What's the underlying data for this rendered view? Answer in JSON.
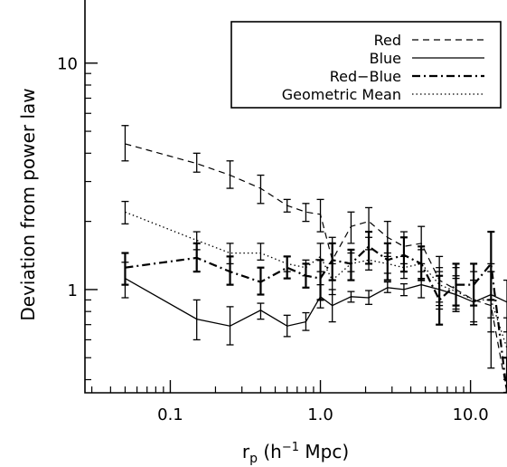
{
  "chart_data": {
    "type": "line",
    "title": "",
    "xlabel": "r_p (h^-1 Mpc)",
    "xlabel_parts": {
      "r": "r",
      "sub": "p",
      "open": " (h",
      "sup": "−1",
      "rest": " Mpc)"
    },
    "ylabel": "Deviation from power law",
    "xscale": "log",
    "yscale": "log",
    "xlim": [
      0.027,
      17.5
    ],
    "ylim": [
      0.35,
      19.0
    ],
    "xticks": [
      {
        "value": 0.1,
        "label": "0.1"
      },
      {
        "value": 1.0,
        "label": "1.0"
      },
      {
        "value": 10.0,
        "label": "10.0"
      }
    ],
    "yticks": [
      {
        "value": 1,
        "label": "1"
      },
      {
        "value": 10,
        "label": "10"
      }
    ],
    "legend_position": "top-right",
    "series": [
      {
        "name": "Red",
        "style": "dashed",
        "points": [
          {
            "x": 0.05,
            "y": 4.4,
            "lo": 3.7,
            "hi": 5.3
          },
          {
            "x": 0.15,
            "y": 3.6,
            "lo": 3.3,
            "hi": 4.0
          },
          {
            "x": 0.25,
            "y": 3.2,
            "lo": 2.8,
            "hi": 3.7
          },
          {
            "x": 0.4,
            "y": 2.8,
            "lo": 2.4,
            "hi": 3.2
          },
          {
            "x": 0.6,
            "y": 2.35,
            "lo": 2.2,
            "hi": 2.5
          },
          {
            "x": 0.8,
            "y": 2.2,
            "lo": 2.0,
            "hi": 2.4
          },
          {
            "x": 1.0,
            "y": 2.15,
            "lo": 1.8,
            "hi": 2.5
          },
          {
            "x": 1.2,
            "y": 1.35,
            "lo": 1.1,
            "hi": 1.7
          },
          {
            "x": 1.6,
            "y": 1.9,
            "lo": 1.6,
            "hi": 2.2
          },
          {
            "x": 2.1,
            "y": 2.0,
            "lo": 1.7,
            "hi": 2.3
          },
          {
            "x": 2.8,
            "y": 1.7,
            "lo": 1.4,
            "hi": 2.0
          },
          {
            "x": 3.6,
            "y": 1.55,
            "lo": 1.3,
            "hi": 1.8
          },
          {
            "x": 4.7,
            "y": 1.6,
            "lo": 1.3,
            "hi": 1.9
          },
          {
            "x": 6.2,
            "y": 1.1,
            "lo": 0.85,
            "hi": 1.4
          },
          {
            "x": 8.0,
            "y": 1.0,
            "lo": 0.8,
            "hi": 1.25
          },
          {
            "x": 10.5,
            "y": 0.9,
            "lo": 0.7,
            "hi": 1.2
          },
          {
            "x": 13.7,
            "y": 0.85,
            "lo": 0.45,
            "hi": 1.3
          },
          {
            "x": 17.5,
            "y": 0.35,
            "lo": 0.35,
            "hi": 0.5
          }
        ]
      },
      {
        "name": "Blue",
        "style": "solid",
        "points": [
          {
            "x": 0.05,
            "y": 1.12,
            "lo": 0.92,
            "hi": 1.32
          },
          {
            "x": 0.15,
            "y": 0.74,
            "lo": 0.6,
            "hi": 0.9
          },
          {
            "x": 0.25,
            "y": 0.69,
            "lo": 0.57,
            "hi": 0.84
          },
          {
            "x": 0.4,
            "y": 0.81,
            "lo": 0.74,
            "hi": 0.87
          },
          {
            "x": 0.6,
            "y": 0.69,
            "lo": 0.62,
            "hi": 0.77
          },
          {
            "x": 0.8,
            "y": 0.72,
            "lo": 0.66,
            "hi": 0.79
          },
          {
            "x": 1.0,
            "y": 0.93,
            "lo": 0.83,
            "hi": 1.05
          },
          {
            "x": 1.2,
            "y": 0.85,
            "lo": 0.72,
            "hi": 1.0
          },
          {
            "x": 1.6,
            "y": 0.93,
            "lo": 0.88,
            "hi": 0.98
          },
          {
            "x": 2.1,
            "y": 0.92,
            "lo": 0.86,
            "hi": 0.99
          },
          {
            "x": 2.8,
            "y": 1.02,
            "lo": 0.97,
            "hi": 1.08
          },
          {
            "x": 3.6,
            "y": 1.0,
            "lo": 0.94,
            "hi": 1.06
          },
          {
            "x": 4.7,
            "y": 1.05,
            "lo": 0.92,
            "hi": 1.2
          },
          {
            "x": 6.2,
            "y": 1.0,
            "lo": 0.82,
            "hi": 1.2
          },
          {
            "x": 8.0,
            "y": 0.95,
            "lo": 0.8,
            "hi": 1.12
          },
          {
            "x": 10.5,
            "y": 0.88,
            "lo": 0.7,
            "hi": 1.1
          },
          {
            "x": 13.7,
            "y": 0.95,
            "lo": 0.75,
            "hi": 1.2
          },
          {
            "x": 17.5,
            "y": 0.88,
            "lo": 0.65,
            "hi": 1.1
          }
        ]
      },
      {
        "name": "Red−Blue",
        "style": "dashdot",
        "points": [
          {
            "x": 0.05,
            "y": 1.25,
            "lo": 1.05,
            "hi": 1.45
          },
          {
            "x": 0.15,
            "y": 1.38,
            "lo": 1.2,
            "hi": 1.6
          },
          {
            "x": 0.25,
            "y": 1.2,
            "lo": 1.05,
            "hi": 1.4
          },
          {
            "x": 0.4,
            "y": 1.08,
            "lo": 0.95,
            "hi": 1.25
          },
          {
            "x": 0.6,
            "y": 1.25,
            "lo": 1.12,
            "hi": 1.4
          },
          {
            "x": 0.8,
            "y": 1.15,
            "lo": 1.02,
            "hi": 1.3
          },
          {
            "x": 1.0,
            "y": 1.12,
            "lo": 0.9,
            "hi": 1.35
          },
          {
            "x": 1.2,
            "y": 1.35,
            "lo": 1.1,
            "hi": 1.6
          },
          {
            "x": 1.6,
            "y": 1.3,
            "lo": 1.1,
            "hi": 1.5
          },
          {
            "x": 2.1,
            "y": 1.55,
            "lo": 1.3,
            "hi": 1.8
          },
          {
            "x": 2.8,
            "y": 1.35,
            "lo": 1.1,
            "hi": 1.6
          },
          {
            "x": 3.6,
            "y": 1.42,
            "lo": 1.2,
            "hi": 1.7
          },
          {
            "x": 4.7,
            "y": 1.3,
            "lo": 1.1,
            "hi": 1.55
          },
          {
            "x": 6.2,
            "y": 0.9,
            "lo": 0.7,
            "hi": 1.15
          },
          {
            "x": 8.0,
            "y": 1.05,
            "lo": 0.85,
            "hi": 1.3
          },
          {
            "x": 10.5,
            "y": 1.05,
            "lo": 0.85,
            "hi": 1.3
          },
          {
            "x": 13.7,
            "y": 1.3,
            "lo": 0.9,
            "hi": 1.8
          },
          {
            "x": 17.5,
            "y": 0.35,
            "lo": 0.35,
            "hi": 0.5
          }
        ]
      },
      {
        "name": "Geometric Mean",
        "style": "dotted",
        "points": [
          {
            "x": 0.05,
            "y": 2.2,
            "lo": 1.95,
            "hi": 2.45
          },
          {
            "x": 0.15,
            "y": 1.65,
            "lo": 1.5,
            "hi": 1.8
          },
          {
            "x": 0.25,
            "y": 1.45,
            "lo": 1.3,
            "hi": 1.6
          },
          {
            "x": 0.4,
            "y": 1.45,
            "lo": 1.35,
            "hi": 1.6
          },
          {
            "x": 0.6,
            "y": 1.3,
            "lo": 1.2,
            "hi": 1.4
          },
          {
            "x": 0.8,
            "y": 1.25,
            "lo": 1.15,
            "hi": 1.35
          },
          {
            "x": 1.0,
            "y": 1.4,
            "lo": 1.2,
            "hi": 1.6
          },
          {
            "x": 1.2,
            "y": 1.1,
            "lo": 0.95,
            "hi": 1.3
          },
          {
            "x": 1.6,
            "y": 1.3,
            "lo": 1.2,
            "hi": 1.45
          },
          {
            "x": 2.1,
            "y": 1.35,
            "lo": 1.22,
            "hi": 1.5
          },
          {
            "x": 2.8,
            "y": 1.3,
            "lo": 1.18,
            "hi": 1.45
          },
          {
            "x": 3.6,
            "y": 1.25,
            "lo": 1.12,
            "hi": 1.4
          },
          {
            "x": 4.7,
            "y": 1.3,
            "lo": 1.12,
            "hi": 1.5
          },
          {
            "x": 6.2,
            "y": 1.05,
            "lo": 0.88,
            "hi": 1.25
          },
          {
            "x": 8.0,
            "y": 0.98,
            "lo": 0.82,
            "hi": 1.15
          },
          {
            "x": 10.5,
            "y": 0.9,
            "lo": 0.72,
            "hi": 1.1
          },
          {
            "x": 13.7,
            "y": 0.9,
            "lo": 0.65,
            "hi": 1.2
          },
          {
            "x": 17.5,
            "y": 0.55,
            "lo": 0.4,
            "hi": 0.75
          }
        ]
      }
    ]
  }
}
